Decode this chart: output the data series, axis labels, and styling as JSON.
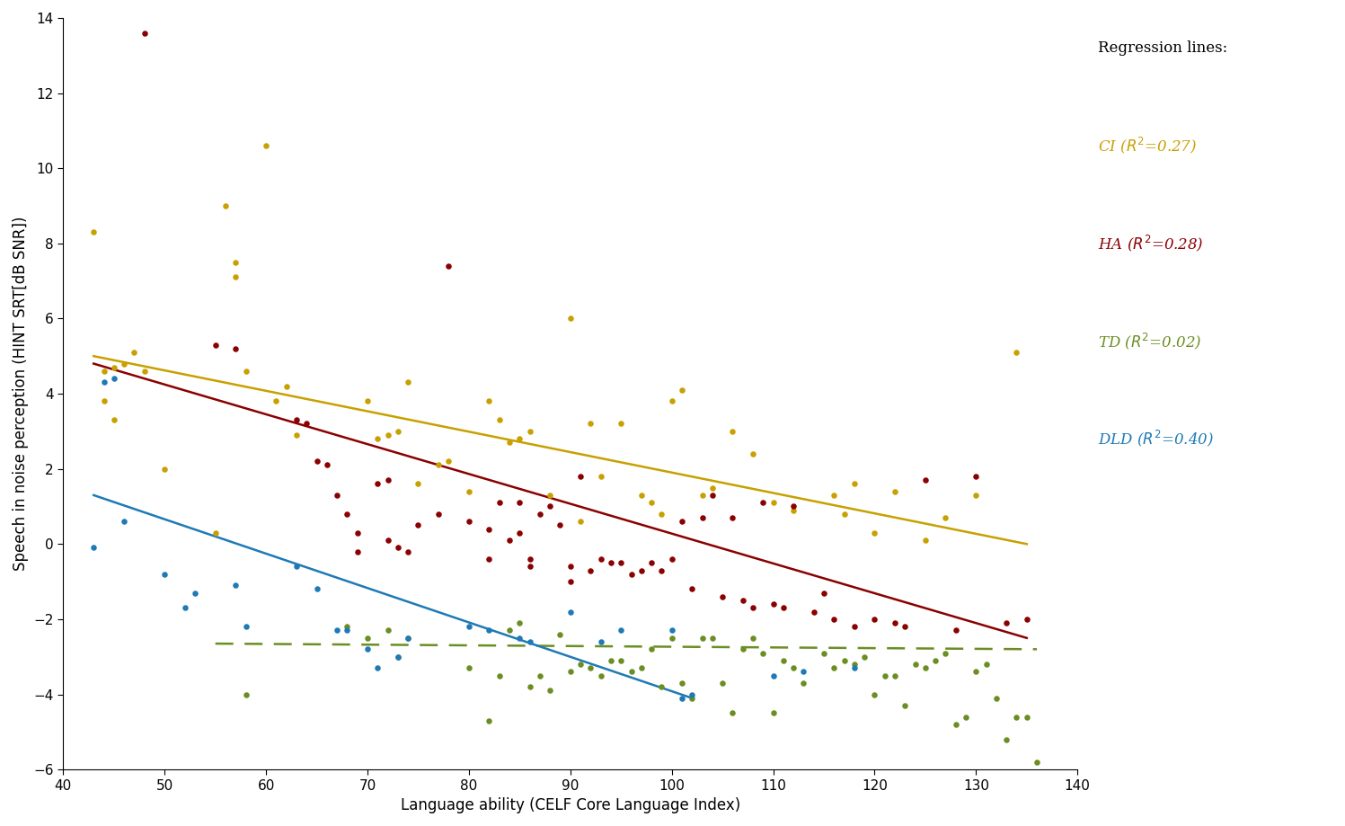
{
  "xlabel": "Language ability (CELF Core Language Index)",
  "ylabel": "Speech in noise perception (HINT SRT[dB SNR])",
  "xlim": [
    40,
    140
  ],
  "ylim": [
    -6,
    14
  ],
  "xticks": [
    40,
    50,
    60,
    70,
    80,
    90,
    100,
    110,
    120,
    130,
    140
  ],
  "yticks": [
    -6,
    -4,
    -2,
    0,
    2,
    4,
    6,
    8,
    10,
    12,
    14
  ],
  "colors": {
    "CI": "#C8A000",
    "HA": "#8B0000",
    "TD": "#6B8E23",
    "DLD": "#1E7AB5"
  },
  "CI_points": [
    [
      43,
      8.3
    ],
    [
      44,
      4.6
    ],
    [
      44,
      3.8
    ],
    [
      45,
      4.7
    ],
    [
      45,
      3.3
    ],
    [
      46,
      4.8
    ],
    [
      47,
      5.1
    ],
    [
      48,
      4.6
    ],
    [
      50,
      2.0
    ],
    [
      55,
      0.3
    ],
    [
      56,
      9.0
    ],
    [
      57,
      7.5
    ],
    [
      57,
      7.1
    ],
    [
      58,
      4.6
    ],
    [
      60,
      10.6
    ],
    [
      61,
      3.8
    ],
    [
      62,
      4.2
    ],
    [
      63,
      2.9
    ],
    [
      70,
      3.8
    ],
    [
      71,
      2.8
    ],
    [
      72,
      2.9
    ],
    [
      73,
      3.0
    ],
    [
      74,
      4.3
    ],
    [
      75,
      1.6
    ],
    [
      77,
      2.1
    ],
    [
      78,
      2.2
    ],
    [
      80,
      1.4
    ],
    [
      82,
      3.8
    ],
    [
      83,
      3.3
    ],
    [
      84,
      2.7
    ],
    [
      85,
      2.8
    ],
    [
      86,
      3.0
    ],
    [
      88,
      1.3
    ],
    [
      90,
      6.0
    ],
    [
      91,
      0.6
    ],
    [
      92,
      3.2
    ],
    [
      93,
      1.8
    ],
    [
      95,
      3.2
    ],
    [
      97,
      1.3
    ],
    [
      98,
      1.1
    ],
    [
      99,
      0.8
    ],
    [
      100,
      3.8
    ],
    [
      101,
      4.1
    ],
    [
      103,
      1.3
    ],
    [
      104,
      1.5
    ],
    [
      106,
      3.0
    ],
    [
      108,
      2.4
    ],
    [
      110,
      1.1
    ],
    [
      112,
      0.9
    ],
    [
      116,
      1.3
    ],
    [
      117,
      0.8
    ],
    [
      118,
      1.6
    ],
    [
      120,
      0.3
    ],
    [
      122,
      1.4
    ],
    [
      125,
      0.1
    ],
    [
      127,
      0.7
    ],
    [
      130,
      1.3
    ],
    [
      134,
      5.1
    ]
  ],
  "HA_points": [
    [
      48,
      13.6
    ],
    [
      55,
      5.3
    ],
    [
      57,
      5.2
    ],
    [
      63,
      3.3
    ],
    [
      64,
      3.2
    ],
    [
      65,
      2.2
    ],
    [
      66,
      2.1
    ],
    [
      67,
      1.3
    ],
    [
      68,
      0.8
    ],
    [
      69,
      0.3
    ],
    [
      69,
      -0.2
    ],
    [
      71,
      1.6
    ],
    [
      72,
      1.7
    ],
    [
      72,
      0.1
    ],
    [
      73,
      -0.1
    ],
    [
      74,
      -0.2
    ],
    [
      75,
      0.5
    ],
    [
      77,
      0.8
    ],
    [
      78,
      7.4
    ],
    [
      80,
      0.6
    ],
    [
      82,
      0.4
    ],
    [
      82,
      -0.4
    ],
    [
      83,
      1.1
    ],
    [
      84,
      0.1
    ],
    [
      85,
      1.1
    ],
    [
      85,
      0.3
    ],
    [
      86,
      -0.4
    ],
    [
      86,
      -0.6
    ],
    [
      87,
      0.8
    ],
    [
      88,
      1.0
    ],
    [
      89,
      0.5
    ],
    [
      90,
      -0.6
    ],
    [
      90,
      -1.0
    ],
    [
      91,
      1.8
    ],
    [
      92,
      -0.7
    ],
    [
      93,
      -0.4
    ],
    [
      94,
      -0.5
    ],
    [
      95,
      -0.5
    ],
    [
      96,
      -0.8
    ],
    [
      97,
      -0.7
    ],
    [
      98,
      -0.5
    ],
    [
      99,
      -0.7
    ],
    [
      100,
      -0.4
    ],
    [
      101,
      0.6
    ],
    [
      102,
      -1.2
    ],
    [
      103,
      0.7
    ],
    [
      104,
      1.3
    ],
    [
      105,
      -1.4
    ],
    [
      106,
      0.7
    ],
    [
      107,
      -1.5
    ],
    [
      108,
      -1.7
    ],
    [
      109,
      1.1
    ],
    [
      110,
      -1.6
    ],
    [
      111,
      -1.7
    ],
    [
      112,
      1.0
    ],
    [
      114,
      -1.8
    ],
    [
      115,
      -1.3
    ],
    [
      116,
      -2.0
    ],
    [
      118,
      -2.2
    ],
    [
      120,
      -2.0
    ],
    [
      122,
      -2.1
    ],
    [
      123,
      -2.2
    ],
    [
      125,
      1.7
    ],
    [
      128,
      -2.3
    ],
    [
      130,
      1.8
    ],
    [
      133,
      -2.1
    ],
    [
      135,
      -2.0
    ]
  ],
  "TD_points": [
    [
      58,
      -4.0
    ],
    [
      68,
      -2.2
    ],
    [
      70,
      -2.5
    ],
    [
      72,
      -2.3
    ],
    [
      73,
      -3.0
    ],
    [
      74,
      -2.5
    ],
    [
      80,
      -3.3
    ],
    [
      82,
      -4.7
    ],
    [
      83,
      -3.5
    ],
    [
      84,
      -2.3
    ],
    [
      85,
      -2.1
    ],
    [
      86,
      -3.8
    ],
    [
      87,
      -3.5
    ],
    [
      88,
      -3.9
    ],
    [
      89,
      -2.4
    ],
    [
      90,
      -3.4
    ],
    [
      91,
      -3.2
    ],
    [
      92,
      -3.3
    ],
    [
      93,
      -3.5
    ],
    [
      94,
      -3.1
    ],
    [
      95,
      -3.1
    ],
    [
      96,
      -3.4
    ],
    [
      97,
      -3.3
    ],
    [
      98,
      -2.8
    ],
    [
      99,
      -3.8
    ],
    [
      100,
      -2.5
    ],
    [
      101,
      -3.7
    ],
    [
      102,
      -4.1
    ],
    [
      103,
      -2.5
    ],
    [
      104,
      -2.5
    ],
    [
      105,
      -3.7
    ],
    [
      106,
      -4.5
    ],
    [
      107,
      -2.8
    ],
    [
      108,
      -2.5
    ],
    [
      109,
      -2.9
    ],
    [
      110,
      -4.5
    ],
    [
      111,
      -3.1
    ],
    [
      112,
      -3.3
    ],
    [
      113,
      -3.7
    ],
    [
      115,
      -2.9
    ],
    [
      116,
      -3.3
    ],
    [
      117,
      -3.1
    ],
    [
      118,
      -3.2
    ],
    [
      119,
      -3.0
    ],
    [
      120,
      -4.0
    ],
    [
      121,
      -3.5
    ],
    [
      122,
      -3.5
    ],
    [
      123,
      -4.3
    ],
    [
      124,
      -3.2
    ],
    [
      125,
      -3.3
    ],
    [
      126,
      -3.1
    ],
    [
      127,
      -2.9
    ],
    [
      128,
      -4.8
    ],
    [
      129,
      -4.6
    ],
    [
      130,
      -3.4
    ],
    [
      131,
      -3.2
    ],
    [
      132,
      -4.1
    ],
    [
      133,
      -5.2
    ],
    [
      134,
      -4.6
    ],
    [
      135,
      -4.6
    ],
    [
      136,
      -5.8
    ]
  ],
  "DLD_points": [
    [
      43,
      -0.1
    ],
    [
      44,
      4.3
    ],
    [
      45,
      4.4
    ],
    [
      46,
      0.6
    ],
    [
      50,
      -0.8
    ],
    [
      52,
      -1.7
    ],
    [
      53,
      -1.3
    ],
    [
      57,
      -1.1
    ],
    [
      58,
      -2.2
    ],
    [
      63,
      -0.6
    ],
    [
      65,
      -1.2
    ],
    [
      67,
      -2.3
    ],
    [
      68,
      -2.3
    ],
    [
      70,
      -2.8
    ],
    [
      71,
      -3.3
    ],
    [
      73,
      -3.0
    ],
    [
      74,
      -2.5
    ],
    [
      80,
      -2.2
    ],
    [
      82,
      -2.3
    ],
    [
      85,
      -2.5
    ],
    [
      86,
      -2.6
    ],
    [
      90,
      -1.8
    ],
    [
      93,
      -2.6
    ],
    [
      95,
      -2.3
    ],
    [
      100,
      -2.3
    ],
    [
      101,
      -4.1
    ],
    [
      102,
      -4.0
    ],
    [
      110,
      -3.5
    ],
    [
      113,
      -3.4
    ],
    [
      118,
      -3.3
    ]
  ],
  "CI_line": {
    "x0": 43,
    "x1": 135,
    "y0": 5.0,
    "y1": 0.0
  },
  "HA_line": {
    "x0": 43,
    "x1": 135,
    "y0": 4.8,
    "y1": -2.5
  },
  "TD_line": {
    "x0": 55,
    "x1": 136,
    "y0": -2.65,
    "y1": -2.8
  },
  "DLD_line": {
    "x0": 43,
    "x1": 102,
    "y0": 1.3,
    "y1": -4.1
  },
  "legend_title": "Regression lines:",
  "legend_labels": [
    [
      "CI",
      "CI (",
      "R",
      "2",
      "=0.27)",
      "#C8A000",
      false
    ],
    [
      "HA",
      "HA (",
      "R",
      "2",
      "=0.28)",
      "#8B0000",
      false
    ],
    [
      "TD",
      "TD (",
      "R",
      "2",
      "=0.02)",
      "#6B8E23",
      true
    ],
    [
      "DLD",
      "DLD (",
      "R",
      "2",
      "=0.40)",
      "#1E7AB5",
      false
    ]
  ]
}
